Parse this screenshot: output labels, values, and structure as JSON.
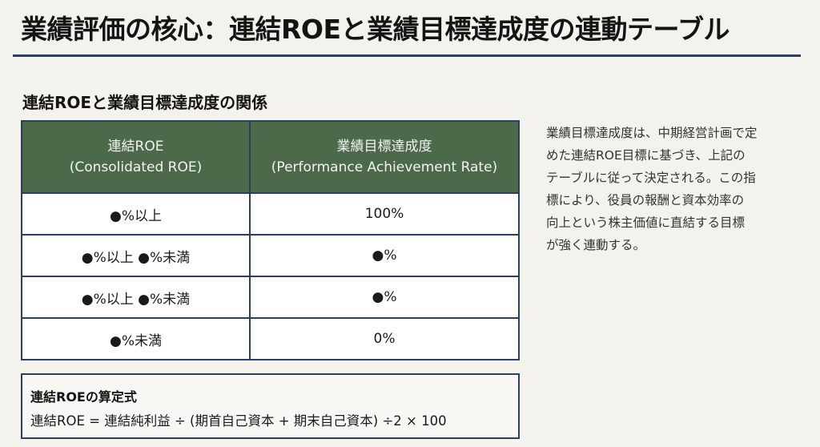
{
  "page": {
    "title": "業績評価の核心：連結ROEと業績目標達成度の連動テーブル",
    "section_heading": "連結ROEと業績目標達成度の関係"
  },
  "table": {
    "headers": [
      {
        "line1": "連結ROE",
        "line2": "(Consolidated ROE)"
      },
      {
        "line1": "業績目標達成度",
        "line2": "(Performance Achievement Rate)"
      }
    ],
    "rows": [
      {
        "roe": "●%以上",
        "rate": "100%"
      },
      {
        "roe": "●%以上 ●%未満",
        "rate": "●%"
      },
      {
        "roe": "●%以上 ●%未満",
        "rate": "●%"
      },
      {
        "roe": "●%未満",
        "rate": "0%"
      }
    ]
  },
  "side_note": {
    "lines": [
      "業績目標達成度は、中期経営計画で定",
      "めた連結ROE目標に基づき、上記の",
      "テーブルに従って決定される。この指",
      "標により、役員の報酬と資本効率の",
      "向上という株主価値に直結する目標",
      "が強く連動する。"
    ]
  },
  "formula": {
    "title": "連結ROEの算定式",
    "expression": "連結ROE = 連結純利益 ÷ (期首自己資本 + 期末自己資本) ÷2 × 100"
  },
  "colors": {
    "header_bg": "#4c6a49",
    "border": "#2b3f63",
    "background": "#f4f2ec"
  }
}
